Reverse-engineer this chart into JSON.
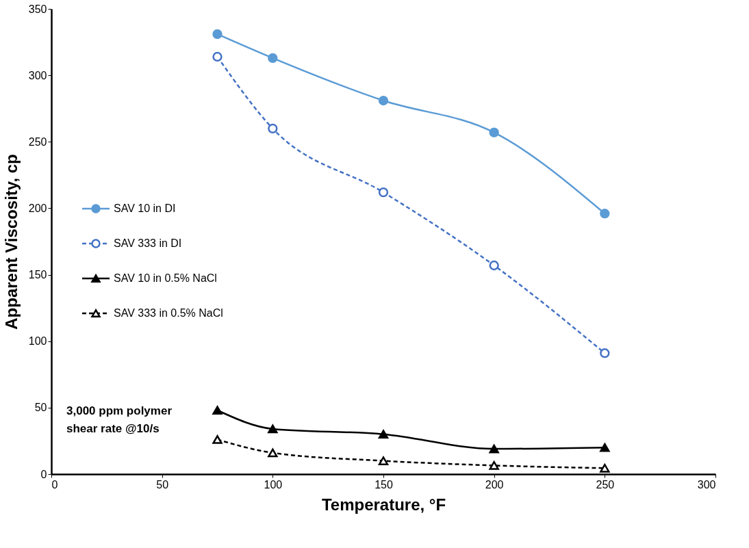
{
  "chart_data": {
    "type": "line",
    "x": [
      75,
      100,
      150,
      200,
      250
    ],
    "xlabel": "Temperature, °F",
    "ylabel": "Apparent Viscosity, cp",
    "xlim": [
      0,
      300
    ],
    "xticks": [
      0,
      50,
      100,
      150,
      200,
      250,
      300
    ],
    "ylim": [
      0,
      350
    ],
    "yticks": [
      0,
      50,
      100,
      150,
      200,
      250,
      300,
      350
    ],
    "grid": false,
    "legend": "left",
    "annotations": [
      "3,000 ppm polymer\nshear rate @10/s"
    ],
    "series": [
      {
        "name": "SAV 10 in DI",
        "color": "#5b9bd5",
        "marker": "circle",
        "line_style": "solid",
        "values": [
          331,
          313,
          281,
          257,
          196
        ]
      },
      {
        "name": "SAV 333 in DI",
        "color": "#4472c4",
        "marker": "circle",
        "line_style": "dashed",
        "values": [
          314,
          260,
          212,
          157,
          91
        ]
      },
      {
        "name": "SAV 10 in 0.5% NaCl",
        "color": "#000000",
        "marker": "triangle",
        "line_style": "solid",
        "values": [
          48,
          34,
          30,
          19,
          20
        ]
      },
      {
        "name": "SAV 333 in 0.5% NaCl",
        "color": "#000000",
        "marker": "triangle",
        "line_style": "dashed",
        "values": [
          26,
          16,
          10,
          6.5,
          4.5
        ]
      }
    ]
  }
}
